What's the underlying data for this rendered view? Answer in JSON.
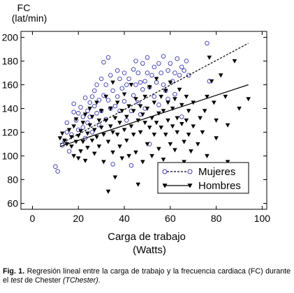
{
  "chart_data": {
    "type": "scatter",
    "ylabel_line1": "FC",
    "ylabel_line2": "(lat/min)",
    "xlabel_line1": "Carga de trabajo",
    "xlabel_line2": "(Watts)",
    "xlim": [
      -5,
      102
    ],
    "ylim": [
      55,
      205
    ],
    "xticks": [
      0,
      20,
      40,
      60,
      80,
      100
    ],
    "yticks": [
      60,
      80,
      100,
      120,
      140,
      160,
      180,
      200
    ],
    "grid": false,
    "legend_position": "bottom-right",
    "series": [
      {
        "name": "Mujeres",
        "marker": "open-circle",
        "color": "#3a3ab0",
        "line_style": "dashed",
        "fit": {
          "x": [
            12,
            94
          ],
          "y": [
            110,
            195
          ]
        },
        "points": [
          [
            10,
            91
          ],
          [
            11,
            87
          ],
          [
            13,
            109
          ],
          [
            14,
            112
          ],
          [
            15,
            120
          ],
          [
            15,
            128
          ],
          [
            16,
            104
          ],
          [
            17,
            118
          ],
          [
            18,
            144
          ],
          [
            18,
            137
          ],
          [
            19,
            130
          ],
          [
            20,
            136
          ],
          [
            20,
            122
          ],
          [
            21,
            141
          ],
          [
            22,
            133
          ],
          [
            22,
            124
          ],
          [
            23,
            115
          ],
          [
            23,
            149
          ],
          [
            24,
            138
          ],
          [
            24,
            128
          ],
          [
            25,
            133
          ],
          [
            25,
            145
          ],
          [
            26,
            120
          ],
          [
            26,
            150
          ],
          [
            27,
            142
          ],
          [
            27,
            155
          ],
          [
            28,
            136
          ],
          [
            28,
            160
          ],
          [
            29,
            126
          ],
          [
            29,
            147
          ],
          [
            30,
            165
          ],
          [
            30,
            138
          ],
          [
            31,
            151
          ],
          [
            31,
            179
          ],
          [
            32,
            160
          ],
          [
            32,
            131
          ],
          [
            33,
            183
          ],
          [
            33,
            147
          ],
          [
            34,
            140
          ],
          [
            34,
            168
          ],
          [
            35,
            155
          ],
          [
            35,
            93
          ],
          [
            36,
            142
          ],
          [
            37,
            172
          ],
          [
            37,
            150
          ],
          [
            38,
            165
          ],
          [
            38,
            138
          ],
          [
            39,
            157
          ],
          [
            40,
            170
          ],
          [
            40,
            146
          ],
          [
            41,
            160
          ],
          [
            41,
            130
          ],
          [
            42,
            165
          ],
          [
            43,
            138
          ],
          [
            43,
            92
          ],
          [
            44,
            173
          ],
          [
            44,
            151
          ],
          [
            45,
            160
          ],
          [
            45,
            180
          ],
          [
            46,
            145
          ],
          [
            46,
            170
          ],
          [
            47,
            162
          ],
          [
            47,
            135
          ],
          [
            48,
            156
          ],
          [
            48,
            178
          ],
          [
            49,
            163
          ],
          [
            49,
            140
          ],
          [
            50,
            170
          ],
          [
            50,
            183
          ],
          [
            51,
            158
          ],
          [
            51,
            110
          ],
          [
            52,
            168
          ],
          [
            53,
            175
          ],
          [
            53,
            150
          ],
          [
            54,
            162
          ],
          [
            55,
            178
          ],
          [
            55,
            143
          ],
          [
            56,
            170
          ],
          [
            57,
            160
          ],
          [
            57,
            184
          ],
          [
            58,
            155
          ],
          [
            59,
            172
          ],
          [
            59,
            148
          ],
          [
            60,
            178
          ],
          [
            61,
            163
          ],
          [
            62,
            170
          ],
          [
            62,
            152
          ],
          [
            63,
            182
          ],
          [
            64,
            168
          ],
          [
            65,
            175
          ],
          [
            65,
            133
          ],
          [
            66,
            172
          ],
          [
            67,
            180
          ],
          [
            68,
            168
          ],
          [
            76,
            195
          ],
          [
            77,
            163
          ]
        ]
      },
      {
        "name": "Hombres",
        "marker": "filled-triangle-down",
        "color": "#000000",
        "line_style": "solid",
        "fit": {
          "x": [
            12,
            94
          ],
          "y": [
            108,
            160
          ]
        },
        "points": [
          [
            12,
            115
          ],
          [
            13,
            119
          ],
          [
            14,
            113
          ],
          [
            15,
            110
          ],
          [
            16,
            122
          ],
          [
            17,
            116
          ],
          [
            17,
            108
          ],
          [
            18,
            100
          ],
          [
            18,
            125
          ],
          [
            19,
            112
          ],
          [
            19,
            131
          ],
          [
            20,
            98
          ],
          [
            20,
            117
          ],
          [
            21,
            121
          ],
          [
            21,
            104
          ],
          [
            22,
            128
          ],
          [
            22,
            112
          ],
          [
            23,
            135
          ],
          [
            23,
            96
          ],
          [
            24,
            119
          ],
          [
            24,
            107
          ],
          [
            25,
            126
          ],
          [
            25,
            140
          ],
          [
            26,
            113
          ],
          [
            26,
            133
          ],
          [
            27,
            102
          ],
          [
            27,
            122
          ],
          [
            28,
            145
          ],
          [
            28,
            116
          ],
          [
            29,
            130
          ],
          [
            29,
            108
          ],
          [
            30,
            124
          ],
          [
            30,
            138
          ],
          [
            31,
            95
          ],
          [
            31,
            118
          ],
          [
            32,
            130
          ],
          [
            32,
            150
          ],
          [
            33,
            112
          ],
          [
            33,
            70
          ],
          [
            34,
            125
          ],
          [
            34,
            140
          ],
          [
            35,
            103
          ],
          [
            35,
            120
          ],
          [
            35,
            162
          ],
          [
            36,
            132
          ],
          [
            36,
            82
          ],
          [
            37,
            118
          ],
          [
            37,
            145
          ],
          [
            38,
            108
          ],
          [
            38,
            128
          ],
          [
            39,
            138
          ],
          [
            39,
            98
          ],
          [
            40,
            122
          ],
          [
            40,
            152
          ],
          [
            41,
            113
          ],
          [
            41,
            133
          ],
          [
            42,
            142
          ],
          [
            42,
            100
          ],
          [
            43,
            125
          ],
          [
            43,
            160
          ],
          [
            44,
            118
          ],
          [
            44,
            138
          ],
          [
            45,
            103
          ],
          [
            45,
            148
          ],
          [
            46,
            130
          ],
          [
            46,
            76
          ],
          [
            47,
            120
          ],
          [
            47,
            142
          ],
          [
            48,
            95
          ],
          [
            48,
            135
          ],
          [
            49,
            128
          ],
          [
            49,
            150
          ],
          [
            50,
            110
          ],
          [
            50,
            140
          ],
          [
            51,
            124
          ],
          [
            51,
            158
          ],
          [
            52,
            132
          ],
          [
            52,
            100
          ],
          [
            53,
            145
          ],
          [
            53,
            118
          ],
          [
            54,
            128
          ],
          [
            54,
            165
          ],
          [
            55,
            136
          ],
          [
            55,
            106
          ],
          [
            56,
            150
          ],
          [
            56,
            124
          ],
          [
            57,
            138
          ],
          [
            57,
            97
          ],
          [
            58,
            118
          ],
          [
            58,
            155
          ],
          [
            59,
            130
          ],
          [
            59,
            145
          ],
          [
            60,
            110
          ],
          [
            60,
            162
          ],
          [
            61,
            125
          ],
          [
            61,
            140
          ],
          [
            62,
            105
          ],
          [
            62,
            148
          ],
          [
            63,
            132
          ],
          [
            63,
            120
          ],
          [
            64,
            156
          ],
          [
            64,
            78
          ],
          [
            65,
            127
          ],
          [
            65,
            143
          ],
          [
            66,
            112
          ],
          [
            66,
            95
          ],
          [
            67,
            130
          ],
          [
            67,
            150
          ],
          [
            68,
            118
          ],
          [
            68,
            138
          ],
          [
            69,
            104
          ],
          [
            70,
            145
          ],
          [
            70,
            125
          ],
          [
            72,
            110
          ],
          [
            73,
            132
          ],
          [
            74,
            120
          ],
          [
            75,
            138
          ],
          [
            76,
            150
          ],
          [
            76,
            100
          ],
          [
            77,
            183
          ],
          [
            78,
            163
          ],
          [
            79,
            145
          ],
          [
            80,
            130
          ],
          [
            80,
            115
          ],
          [
            82,
            168
          ],
          [
            84,
            150
          ],
          [
            85,
            126
          ],
          [
            85,
            95
          ],
          [
            88,
            180
          ],
          [
            90,
            140
          ],
          [
            94,
            148
          ]
        ]
      }
    ]
  },
  "caption": {
    "fig_label": "Fig. 1.",
    "text_part1": " Regresión lineal entre la carga de trabajo y la frecuencia cardiaca (FC) durante el ",
    "italic1": "test",
    "text_part2": " de Chester ",
    "italic2": "(TChester)",
    "text_part3": "."
  }
}
